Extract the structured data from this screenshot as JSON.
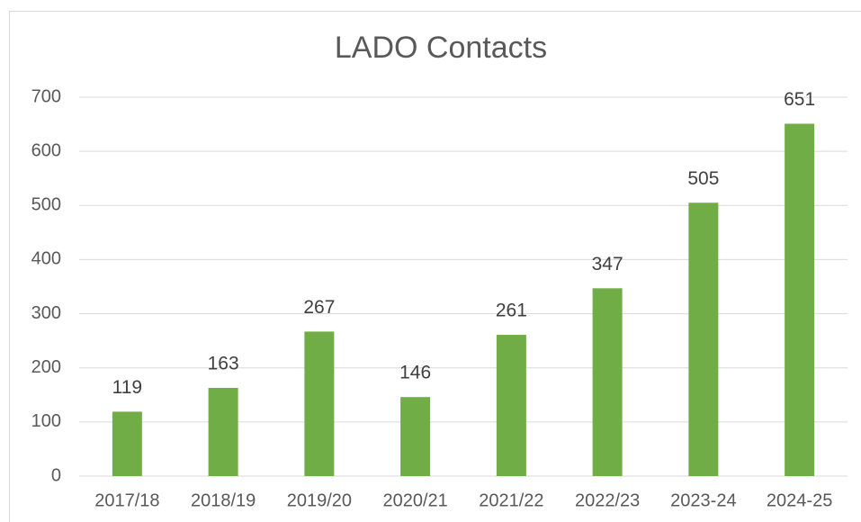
{
  "chart_data": {
    "type": "bar",
    "title": "LADO Contacts",
    "categories": [
      "2017/18",
      "2018/19",
      "2019/20",
      "2020/21",
      "2021/22",
      "2022/23",
      "2023-24",
      "2024-25"
    ],
    "values": [
      119,
      163,
      267,
      146,
      261,
      347,
      505,
      651
    ],
    "color": "#70ad47",
    "ylim": [
      0,
      700
    ],
    "yticks": [
      0,
      100,
      200,
      300,
      400,
      500,
      600,
      700
    ],
    "grid": true
  }
}
